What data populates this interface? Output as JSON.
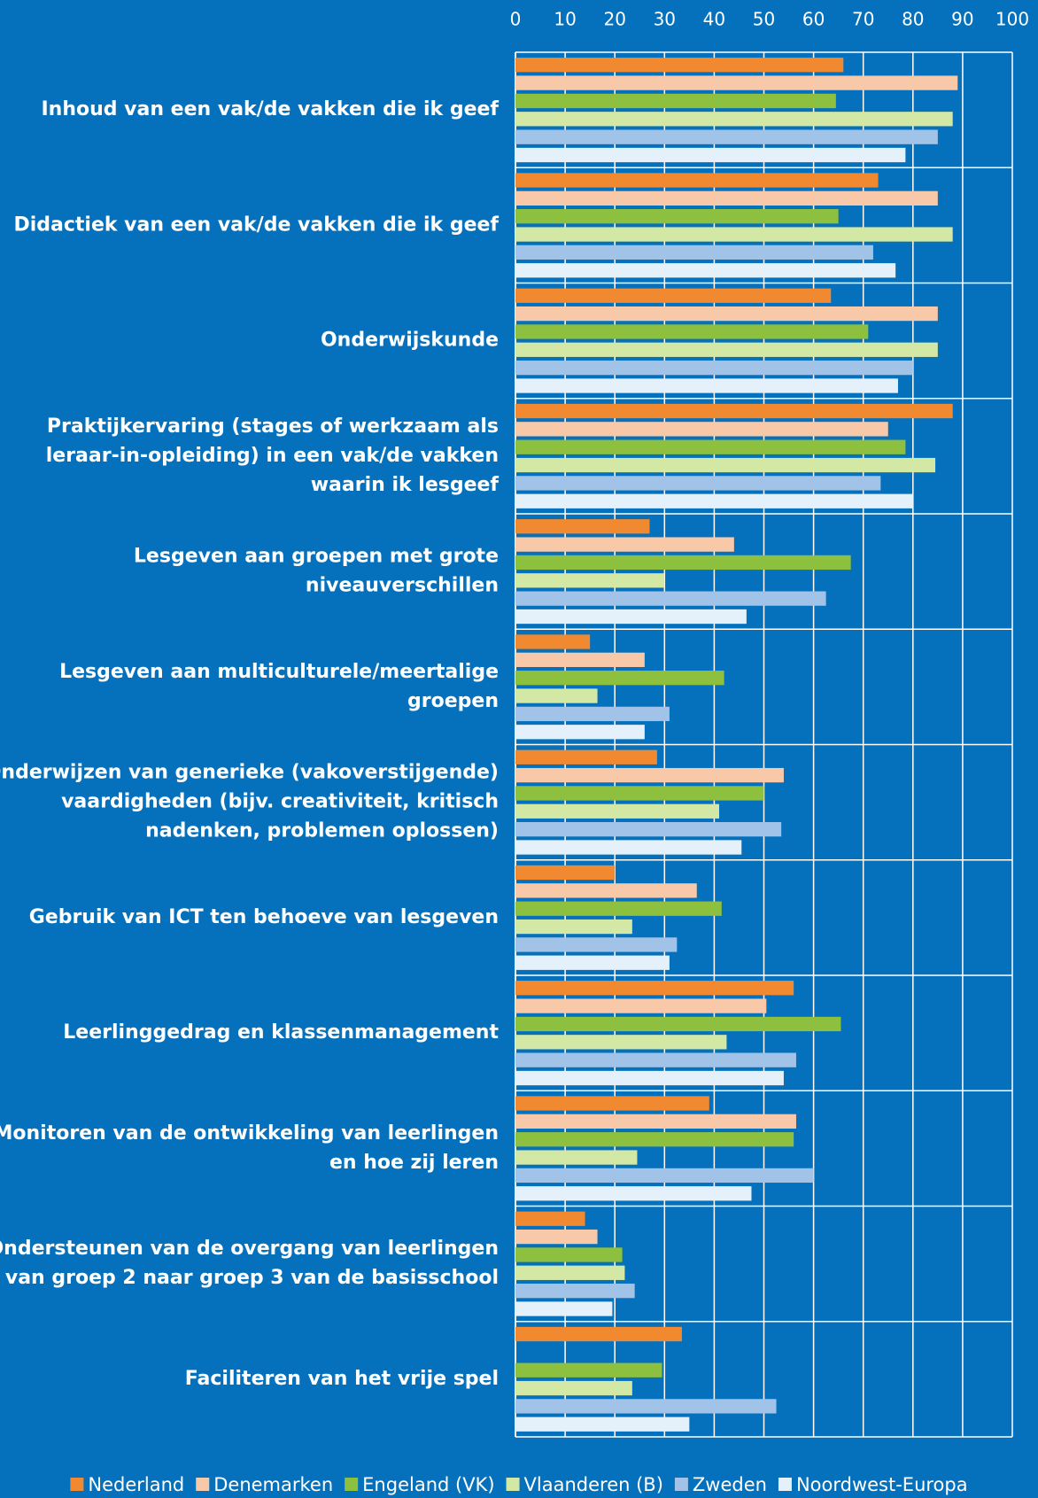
{
  "chart_data": {
    "type": "barh",
    "categories": [
      [
        "Inhoud van een vak/de vakken die ik geef"
      ],
      [
        "Didactiek van een vak/de vakken die ik geef"
      ],
      [
        "Onderwijskunde"
      ],
      [
        "Praktijkervaring (stages of werkzaam als",
        "leraar-in-opleiding) in een vak/de vakken",
        "waarin ik lesgeef"
      ],
      [
        "Lesgeven aan groepen met grote",
        "niveauverschillen"
      ],
      [
        "Lesgeven aan multiculturele/meertalige",
        "groepen"
      ],
      [
        "Onderwijzen van generieke (vakoverstijgende)",
        "vaardigheden (bijv. creativiteit, kritisch",
        "nadenken, problemen oplossen)"
      ],
      [
        "Gebruik van ICT ten behoeve van lesgeven"
      ],
      [
        "Leerlinggedrag en klassenmanagement"
      ],
      [
        "Monitoren van de ontwikkeling van leerlingen",
        "en hoe zij leren"
      ],
      [
        "Ondersteunen van de overgang van leerlingen",
        "van groep 2 naar groep 3 van de basisschool"
      ],
      [
        "Faciliteren van het vrije spel"
      ]
    ],
    "series": [
      {
        "name": "Nederland",
        "color": "#f0892f",
        "values": [
          66,
          73,
          63.5,
          88,
          27,
          15,
          28.5,
          20,
          56,
          39,
          14,
          33.5
        ]
      },
      {
        "name": "Denemarken",
        "color": "#f8c9a9",
        "values": [
          89,
          85,
          85,
          75,
          44,
          26,
          54,
          36.5,
          50.5,
          56.5,
          16.5,
          null
        ]
      },
      {
        "name": "Engeland (VK)",
        "color": "#8dc03f",
        "values": [
          64.5,
          65,
          71,
          78.5,
          67.5,
          42,
          50,
          41.5,
          65.5,
          56,
          21.5,
          29.5
        ]
      },
      {
        "name": "Vlaanderen (B)",
        "color": "#d3e8a4",
        "values": [
          88,
          88,
          85,
          84.5,
          30,
          16.5,
          41,
          23.5,
          42.5,
          24.5,
          22,
          23.5
        ]
      },
      {
        "name": "Zweden",
        "color": "#a1c3e8",
        "values": [
          85,
          72,
          80,
          73.5,
          62.5,
          31,
          53.5,
          32.5,
          56.5,
          60,
          24,
          52.5
        ]
      },
      {
        "name": "Noordwest-Europa",
        "color": "#e4f0fa",
        "values": [
          78.5,
          76.5,
          77,
          80,
          46.5,
          26,
          45.5,
          31,
          54,
          47.5,
          19.5,
          35
        ]
      }
    ],
    "xlim": [
      0,
      100
    ],
    "xticks": [
      0,
      10,
      20,
      30,
      40,
      50,
      60,
      70,
      80,
      90,
      100
    ],
    "grid": true
  }
}
